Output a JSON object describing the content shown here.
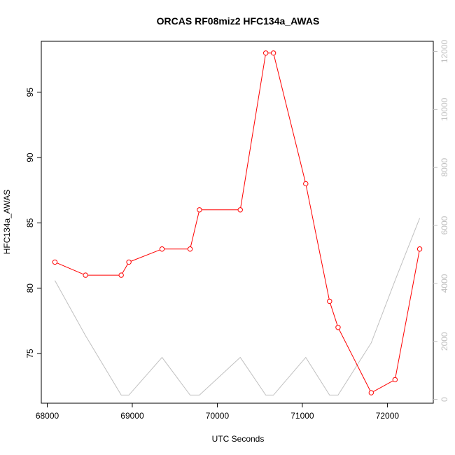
{
  "chart_data": {
    "type": "line",
    "title": "ORCAS RF08miz2 HFC134a_AWAS",
    "xlabel": "UTC Seconds",
    "ylabel": "HFC134a_AWAS",
    "xlim": [
      67930,
      72540
    ],
    "ylim": [
      71.2,
      98.9
    ],
    "y2lim": [
      -130,
      12350
    ],
    "x_ticks": [
      68000,
      69000,
      70000,
      71000,
      72000
    ],
    "y_ticks": [
      75,
      80,
      85,
      90,
      95
    ],
    "y2_ticks": [
      0,
      2000,
      4000,
      6000,
      8000,
      10000,
      12000
    ],
    "series": [
      {
        "color": "#ff0000",
        "markers": "open-circle",
        "x": [
          68090,
          68450,
          68870,
          68960,
          69350,
          69680,
          69790,
          70270,
          70570,
          70660,
          71040,
          71320,
          71420,
          71810,
          72090,
          72380
        ],
        "y": [
          82,
          81,
          81,
          82,
          83,
          83,
          86,
          86,
          98,
          98,
          88,
          79,
          77,
          72,
          73,
          83
        ]
      },
      {
        "color": "#c0c0c0",
        "axis": "right",
        "x": [
          68090,
          68450,
          68870,
          68960,
          69350,
          69680,
          69790,
          70270,
          70570,
          70660,
          71040,
          71320,
          71420,
          71810,
          72090,
          72380
        ],
        "y": [
          4100,
          2200,
          150,
          150,
          1450,
          150,
          150,
          1450,
          150,
          150,
          1450,
          150,
          150,
          1950,
          4100,
          6250
        ]
      }
    ]
  }
}
